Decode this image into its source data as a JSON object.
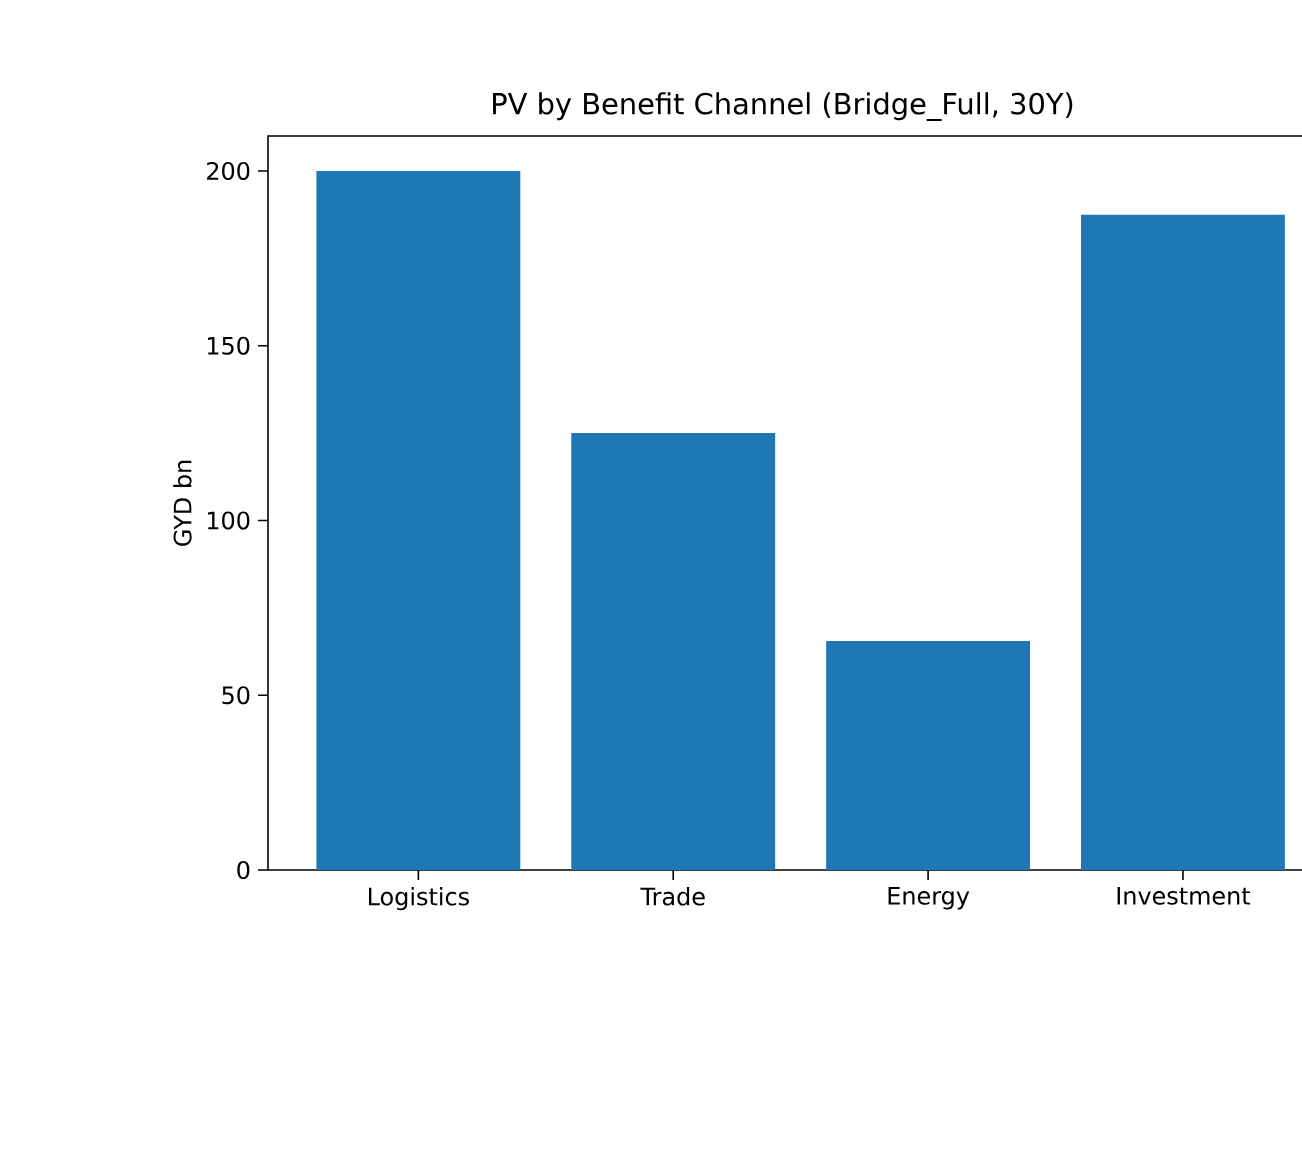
{
  "chart_data": {
    "type": "bar",
    "title": "PV by Benefit Channel (Bridge_Full, 30Y)",
    "ylabel": "GYD bn",
    "categories": [
      "Logistics",
      "Trade",
      "Energy",
      "Investment"
    ],
    "values": [
      200,
      125,
      65.5,
      187.5
    ],
    "color": "#1f77b4",
    "ylim": [
      0,
      210
    ],
    "yticks": [
      0,
      50,
      100,
      150,
      200
    ]
  }
}
